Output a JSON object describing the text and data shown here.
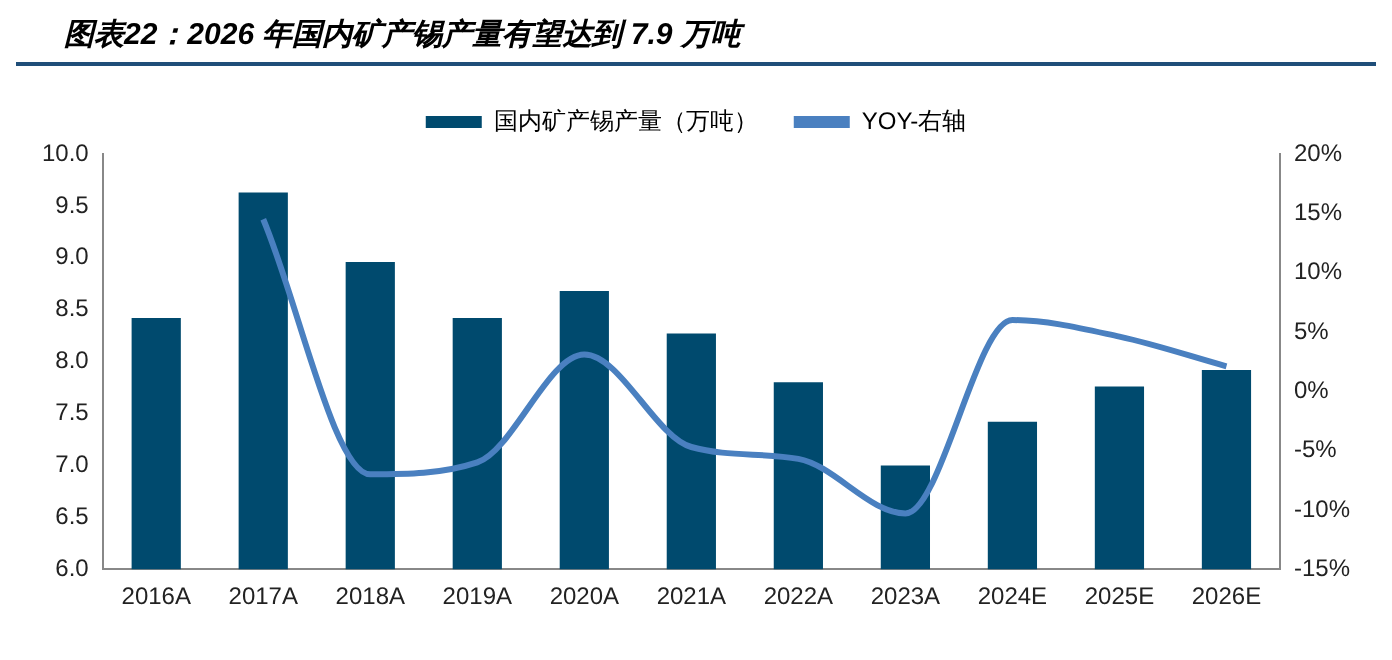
{
  "chart_data": {
    "type": "bar",
    "title": "图表22：2026 年国内矿产锡产量有望达到 7.9 万吨",
    "categories": [
      "2016A",
      "2017A",
      "2018A",
      "2019A",
      "2020A",
      "2021A",
      "2022A",
      "2023A",
      "2024E",
      "2025E",
      "2026E"
    ],
    "series": [
      {
        "name": "国内矿产锡产量（万吨）",
        "color": "#004a6e",
        "values": [
          8.42,
          9.63,
          8.96,
          8.42,
          8.68,
          8.27,
          7.8,
          7.0,
          7.42,
          7.76,
          7.92
        ]
      },
      {
        "name": "YOY-右轴",
        "type": "line",
        "axis": "y2",
        "color": "#4a80c0",
        "values": [
          null,
          14.5,
          -7.0,
          -6.0,
          3.1,
          -4.7,
          -5.7,
          -10.3,
          6.0,
          4.6,
          2.1
        ]
      }
    ],
    "ylim": [
      6.0,
      10.0
    ],
    "yticks": [
      {
        "value": 6,
        "label": "6.0"
      },
      {
        "value": 6.5,
        "label": "6.5"
      },
      {
        "value": 7,
        "label": "7.0"
      },
      {
        "value": 7.5,
        "label": "7.5"
      },
      {
        "value": 8,
        "label": "8.0"
      },
      {
        "value": 8.5,
        "label": "8.5"
      },
      {
        "value": 9,
        "label": "9.0"
      },
      {
        "value": 9.5,
        "label": "9.5"
      },
      {
        "value": 10,
        "label": "10.0"
      }
    ],
    "y2lim": [
      -15,
      20
    ],
    "y2ticks": [
      {
        "value": -15,
        "label": "-15%"
      },
      {
        "value": -10,
        "label": "-10%"
      },
      {
        "value": -5,
        "label": "-5%"
      },
      {
        "value": 0,
        "label": "0%"
      },
      {
        "value": 5,
        "label": "5%"
      },
      {
        "value": 10,
        "label": "10%"
      },
      {
        "value": 15,
        "label": "15%"
      },
      {
        "value": 20,
        "label": "20%"
      }
    ],
    "grid": false,
    "legend": "top",
    "marker": "none"
  }
}
